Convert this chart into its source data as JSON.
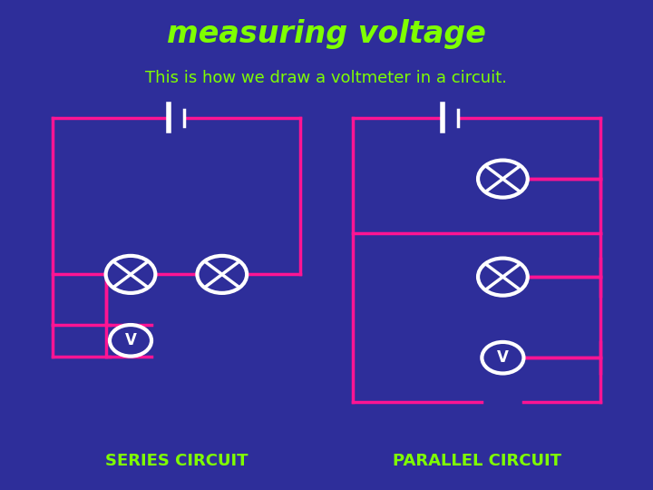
{
  "title": "measuring voltage",
  "subtitle": "This is how we draw a voltmeter in a circuit.",
  "bg_color": "#2E2E9A",
  "title_color": "#7FFF00",
  "subtitle_color": "#7FFF00",
  "circuit_color": "#FF1493",
  "component_color": "#FFFFFF",
  "label_color": "#7FFF00",
  "series_label": "SERIES CIRCUIT",
  "parallel_label": "PARALLEL CIRCUIT",
  "title_fontsize": 24,
  "subtitle_fontsize": 13,
  "label_fontsize": 13,
  "lw": 2.5,
  "bulb_r": 0.038,
  "volt_r": 0.032,
  "batt_tall": 0.055,
  "batt_short": 0.032
}
